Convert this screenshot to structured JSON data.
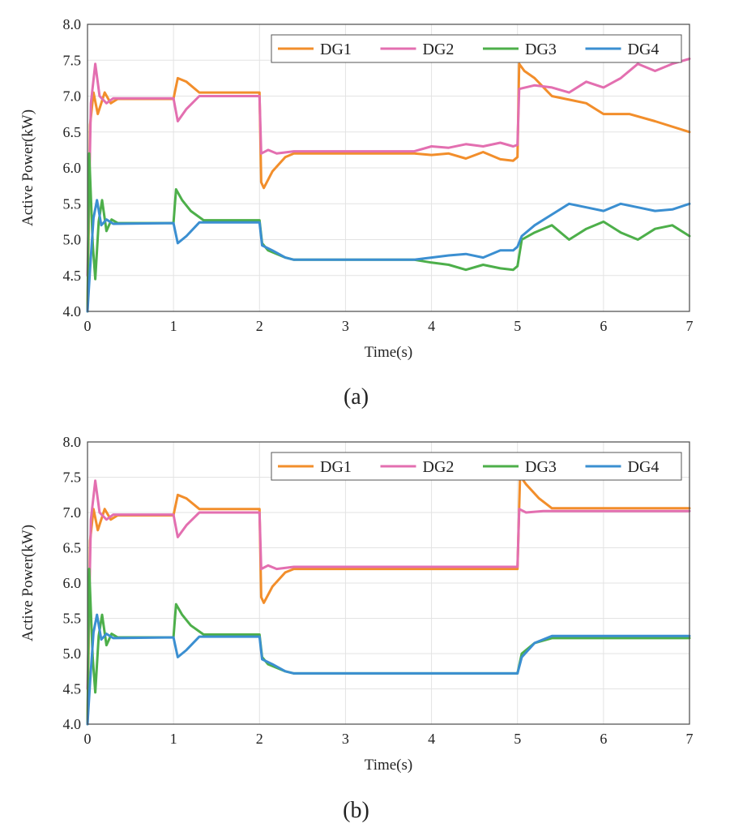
{
  "chart_data": [
    {
      "type": "line",
      "panel_label": "(a)",
      "xlabel": "Time(s)",
      "ylabel": "Active Power(kW)",
      "xlim": [
        0,
        7
      ],
      "ylim": [
        4.0,
        8.0
      ],
      "xticks": [
        "0",
        "1",
        "2",
        "3",
        "4",
        "5",
        "6",
        "7"
      ],
      "yticks": [
        "4.0",
        "4.5",
        "5.0",
        "5.5",
        "6.0",
        "6.5",
        "7.0",
        "7.5",
        "8.0"
      ],
      "grid": true,
      "legend_position": "top-right",
      "series": [
        {
          "name": "DG1",
          "color": "#f28e2b",
          "points": [
            [
              0,
              4.0
            ],
            [
              0.03,
              6.6
            ],
            [
              0.07,
              7.05
            ],
            [
              0.12,
              6.75
            ],
            [
              0.2,
              7.05
            ],
            [
              0.27,
              6.9
            ],
            [
              0.35,
              6.96
            ],
            [
              1.0,
              6.96
            ],
            [
              1.05,
              7.25
            ],
            [
              1.15,
              7.2
            ],
            [
              1.3,
              7.05
            ],
            [
              2.0,
              7.05
            ],
            [
              2.02,
              5.8
            ],
            [
              2.05,
              5.72
            ],
            [
              2.15,
              5.95
            ],
            [
              2.3,
              6.15
            ],
            [
              2.4,
              6.2
            ],
            [
              3.8,
              6.2
            ],
            [
              4.0,
              6.18
            ],
            [
              4.2,
              6.2
            ],
            [
              4.4,
              6.13
            ],
            [
              4.6,
              6.22
            ],
            [
              4.8,
              6.12
            ],
            [
              4.95,
              6.1
            ],
            [
              5.0,
              6.15
            ],
            [
              5.02,
              7.45
            ],
            [
              5.08,
              7.35
            ],
            [
              5.2,
              7.25
            ],
            [
              5.4,
              7.0
            ],
            [
              5.6,
              6.95
            ],
            [
              5.8,
              6.9
            ],
            [
              6.0,
              6.75
            ],
            [
              6.3,
              6.75
            ],
            [
              6.6,
              6.65
            ],
            [
              7.0,
              6.5
            ]
          ]
        },
        {
          "name": "DG2",
          "color": "#e36fb0",
          "points": [
            [
              0,
              4.5
            ],
            [
              0.04,
              6.9
            ],
            [
              0.09,
              7.45
            ],
            [
              0.14,
              7.0
            ],
            [
              0.22,
              6.9
            ],
            [
              0.3,
              6.97
            ],
            [
              1.0,
              6.97
            ],
            [
              1.05,
              6.65
            ],
            [
              1.15,
              6.82
            ],
            [
              1.3,
              7.0
            ],
            [
              2.0,
              7.0
            ],
            [
              2.02,
              6.2
            ],
            [
              2.1,
              6.25
            ],
            [
              2.2,
              6.2
            ],
            [
              2.4,
              6.23
            ],
            [
              3.8,
              6.23
            ],
            [
              4.0,
              6.3
            ],
            [
              4.2,
              6.28
            ],
            [
              4.4,
              6.33
            ],
            [
              4.6,
              6.3
            ],
            [
              4.8,
              6.35
            ],
            [
              4.95,
              6.3
            ],
            [
              5.0,
              6.32
            ],
            [
              5.02,
              7.1
            ],
            [
              5.2,
              7.15
            ],
            [
              5.4,
              7.12
            ],
            [
              5.6,
              7.05
            ],
            [
              5.8,
              7.2
            ],
            [
              6.0,
              7.12
            ],
            [
              6.2,
              7.25
            ],
            [
              6.4,
              7.45
            ],
            [
              6.6,
              7.35
            ],
            [
              6.8,
              7.45
            ],
            [
              7.0,
              7.52
            ]
          ]
        },
        {
          "name": "DG3",
          "color": "#4daf4a",
          "points": [
            [
              0,
              4.0
            ],
            [
              0.02,
              6.2
            ],
            [
              0.06,
              4.95
            ],
            [
              0.09,
              4.45
            ],
            [
              0.13,
              5.25
            ],
            [
              0.17,
              5.55
            ],
            [
              0.22,
              5.12
            ],
            [
              0.28,
              5.28
            ],
            [
              0.35,
              5.23
            ],
            [
              1.0,
              5.23
            ],
            [
              1.03,
              5.7
            ],
            [
              1.1,
              5.55
            ],
            [
              1.2,
              5.4
            ],
            [
              1.35,
              5.27
            ],
            [
              2.0,
              5.27
            ],
            [
              2.03,
              4.95
            ],
            [
              2.1,
              4.85
            ],
            [
              2.3,
              4.75
            ],
            [
              2.4,
              4.72
            ],
            [
              3.8,
              4.72
            ],
            [
              4.0,
              4.68
            ],
            [
              4.2,
              4.65
            ],
            [
              4.4,
              4.58
            ],
            [
              4.6,
              4.65
            ],
            [
              4.8,
              4.6
            ],
            [
              4.95,
              4.58
            ],
            [
              5.0,
              4.63
            ],
            [
              5.05,
              5.0
            ],
            [
              5.2,
              5.1
            ],
            [
              5.4,
              5.2
            ],
            [
              5.6,
              5.0
            ],
            [
              5.8,
              5.15
            ],
            [
              6.0,
              5.25
            ],
            [
              6.2,
              5.1
            ],
            [
              6.4,
              5.0
            ],
            [
              6.6,
              5.15
            ],
            [
              6.8,
              5.2
            ],
            [
              7.0,
              5.05
            ]
          ]
        },
        {
          "name": "DG4",
          "color": "#3b8fd1",
          "points": [
            [
              0,
              4.0
            ],
            [
              0.03,
              4.6
            ],
            [
              0.07,
              5.3
            ],
            [
              0.11,
              5.55
            ],
            [
              0.16,
              5.2
            ],
            [
              0.22,
              5.28
            ],
            [
              0.3,
              5.22
            ],
            [
              1.0,
              5.23
            ],
            [
              1.05,
              4.95
            ],
            [
              1.15,
              5.05
            ],
            [
              1.3,
              5.24
            ],
            [
              2.0,
              5.24
            ],
            [
              2.03,
              4.92
            ],
            [
              2.15,
              4.85
            ],
            [
              2.3,
              4.75
            ],
            [
              2.4,
              4.72
            ],
            [
              3.8,
              4.72
            ],
            [
              4.0,
              4.75
            ],
            [
              4.2,
              4.78
            ],
            [
              4.4,
              4.8
            ],
            [
              4.6,
              4.75
            ],
            [
              4.8,
              4.85
            ],
            [
              4.95,
              4.85
            ],
            [
              5.0,
              4.9
            ],
            [
              5.05,
              5.05
            ],
            [
              5.2,
              5.2
            ],
            [
              5.4,
              5.35
            ],
            [
              5.6,
              5.5
            ],
            [
              5.8,
              5.45
            ],
            [
              6.0,
              5.4
            ],
            [
              6.2,
              5.5
            ],
            [
              6.4,
              5.45
            ],
            [
              6.6,
              5.4
            ],
            [
              6.8,
              5.42
            ],
            [
              7.0,
              5.5
            ]
          ]
        }
      ]
    },
    {
      "type": "line",
      "panel_label": "(b)",
      "xlabel": "Time(s)",
      "ylabel": "Active Power(kW)",
      "xlim": [
        0,
        7
      ],
      "ylim": [
        4.0,
        8.0
      ],
      "xticks": [
        "0",
        "1",
        "2",
        "3",
        "4",
        "5",
        "6",
        "7"
      ],
      "yticks": [
        "4.0",
        "4.5",
        "5.0",
        "5.5",
        "6.0",
        "6.5",
        "7.0",
        "7.5",
        "8.0"
      ],
      "grid": true,
      "legend_position": "top-right",
      "series": [
        {
          "name": "DG1",
          "color": "#f28e2b",
          "points": [
            [
              0,
              4.0
            ],
            [
              0.03,
              6.6
            ],
            [
              0.07,
              7.05
            ],
            [
              0.12,
              6.75
            ],
            [
              0.2,
              7.05
            ],
            [
              0.27,
              6.9
            ],
            [
              0.35,
              6.96
            ],
            [
              1.0,
              6.96
            ],
            [
              1.05,
              7.25
            ],
            [
              1.15,
              7.2
            ],
            [
              1.3,
              7.05
            ],
            [
              2.0,
              7.05
            ],
            [
              2.02,
              5.8
            ],
            [
              2.05,
              5.72
            ],
            [
              2.15,
              5.95
            ],
            [
              2.3,
              6.15
            ],
            [
              2.4,
              6.2
            ],
            [
              5.0,
              6.2
            ],
            [
              5.03,
              7.52
            ],
            [
              5.1,
              7.4
            ],
            [
              5.25,
              7.2
            ],
            [
              5.4,
              7.06
            ],
            [
              7.0,
              7.06
            ]
          ]
        },
        {
          "name": "DG2",
          "color": "#e36fb0",
          "points": [
            [
              0,
              4.5
            ],
            [
              0.04,
              6.9
            ],
            [
              0.09,
              7.45
            ],
            [
              0.14,
              7.0
            ],
            [
              0.22,
              6.9
            ],
            [
              0.3,
              6.97
            ],
            [
              1.0,
              6.97
            ],
            [
              1.05,
              6.65
            ],
            [
              1.15,
              6.82
            ],
            [
              1.3,
              7.0
            ],
            [
              2.0,
              7.0
            ],
            [
              2.02,
              6.2
            ],
            [
              2.1,
              6.25
            ],
            [
              2.2,
              6.2
            ],
            [
              2.4,
              6.23
            ],
            [
              5.0,
              6.23
            ],
            [
              5.02,
              7.05
            ],
            [
              5.1,
              7.0
            ],
            [
              5.3,
              7.02
            ],
            [
              5.4,
              7.02
            ],
            [
              7.0,
              7.02
            ]
          ]
        },
        {
          "name": "DG3",
          "color": "#4daf4a",
          "points": [
            [
              0,
              4.0
            ],
            [
              0.02,
              6.2
            ],
            [
              0.06,
              4.95
            ],
            [
              0.09,
              4.45
            ],
            [
              0.13,
              5.25
            ],
            [
              0.17,
              5.55
            ],
            [
              0.22,
              5.12
            ],
            [
              0.28,
              5.28
            ],
            [
              0.35,
              5.23
            ],
            [
              1.0,
              5.23
            ],
            [
              1.03,
              5.7
            ],
            [
              1.1,
              5.55
            ],
            [
              1.2,
              5.4
            ],
            [
              1.35,
              5.27
            ],
            [
              2.0,
              5.27
            ],
            [
              2.03,
              4.95
            ],
            [
              2.1,
              4.85
            ],
            [
              2.3,
              4.75
            ],
            [
              2.4,
              4.72
            ],
            [
              5.0,
              4.72
            ],
            [
              5.05,
              5.0
            ],
            [
              5.2,
              5.15
            ],
            [
              5.4,
              5.22
            ],
            [
              7.0,
              5.22
            ]
          ]
        },
        {
          "name": "DG4",
          "color": "#3b8fd1",
          "points": [
            [
              0,
              4.0
            ],
            [
              0.03,
              4.6
            ],
            [
              0.07,
              5.3
            ],
            [
              0.11,
              5.55
            ],
            [
              0.16,
              5.2
            ],
            [
              0.22,
              5.28
            ],
            [
              0.3,
              5.22
            ],
            [
              1.0,
              5.23
            ],
            [
              1.05,
              4.95
            ],
            [
              1.15,
              5.05
            ],
            [
              1.3,
              5.24
            ],
            [
              2.0,
              5.24
            ],
            [
              2.03,
              4.92
            ],
            [
              2.15,
              4.85
            ],
            [
              2.3,
              4.75
            ],
            [
              2.4,
              4.72
            ],
            [
              5.0,
              4.72
            ],
            [
              5.05,
              4.95
            ],
            [
              5.2,
              5.15
            ],
            [
              5.4,
              5.25
            ],
            [
              7.0,
              5.25
            ]
          ]
        }
      ]
    }
  ]
}
